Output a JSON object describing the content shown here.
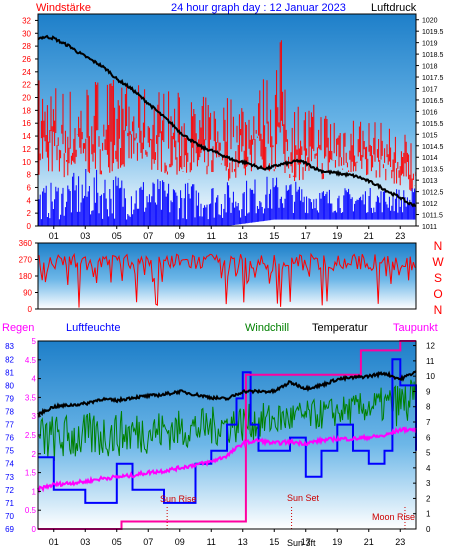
{
  "header": {
    "left_label": "Windstärke",
    "title": "24 hour graph day : 12 Januar 2023",
    "right_label": "Luftdruck"
  },
  "colors": {
    "wind_speed": "#ff0000",
    "gust": "#0000ff",
    "pressure": "#000000",
    "direction": "#ff0000",
    "rain": "#0000ff",
    "humidity": "#0000ff",
    "windchill": "#008000",
    "temperature": "#000000",
    "dewpoint": "#ff00ff",
    "rain_line": "#ff00a0"
  },
  "chart_data": [
    {
      "type": "line",
      "name": "wind-pressure",
      "x_ticks": [
        "01",
        "03",
        "05",
        "07",
        "09",
        "11",
        "13",
        "15",
        "17",
        "19",
        "21",
        "23"
      ],
      "y_left_ticks": [
        "0",
        "2",
        "4",
        "6",
        "8",
        "10",
        "12",
        "14",
        "16",
        "18",
        "20",
        "22",
        "24",
        "26",
        "28",
        "30",
        "32"
      ],
      "y_left_range": [
        0,
        33
      ],
      "y_right_ticks": [
        "1011",
        "1011.5",
        "1012",
        "1012.5",
        "1013",
        "1013.5",
        "1014",
        "1014.5",
        "1015",
        "1015.5",
        "1016",
        "1016.5",
        "1017",
        "1017.5",
        "1018",
        "1018.5",
        "1019",
        "1019.5",
        "1020"
      ],
      "y_right_range": [
        1011,
        1020.25
      ],
      "pressure": {
        "x": [
          0,
          0.5,
          1,
          1.5,
          2,
          2.5,
          3,
          3.5,
          4,
          4.5,
          5,
          5.5,
          6,
          6.5,
          7,
          7.5,
          8,
          8.5,
          9,
          9.5,
          10,
          10.5,
          11,
          11.5,
          12,
          12.5,
          13,
          13.5,
          14,
          14.5,
          15,
          15.5,
          16,
          16.5,
          17,
          17.5,
          18,
          18.5,
          19,
          19.5,
          20,
          20.5,
          21,
          21.5,
          22,
          22.5,
          23,
          23.5,
          24
        ],
        "values": [
          1019.2,
          1019.25,
          1019.2,
          1019.0,
          1018.85,
          1018.6,
          1018.4,
          1018.2,
          1018.0,
          1017.75,
          1017.4,
          1017.2,
          1016.95,
          1016.65,
          1016.35,
          1016.05,
          1015.75,
          1015.45,
          1015.1,
          1014.85,
          1014.6,
          1014.4,
          1014.3,
          1014.15,
          1014.0,
          1013.85,
          1013.8,
          1013.7,
          1013.55,
          1013.5,
          1013.6,
          1013.7,
          1013.75,
          1013.85,
          1013.75,
          1013.55,
          1013.4,
          1013.35,
          1013.3,
          1013.25,
          1013.2,
          1013.1,
          1012.95,
          1012.8,
          1012.6,
          1012.4,
          1012.25,
          1012.0,
          1011.9
        ]
      },
      "wind_speed_band": {
        "x": [
          0,
          2,
          4,
          6,
          8,
          10,
          12,
          14,
          15.5,
          16,
          18,
          20,
          22,
          24
        ],
        "low": [
          8,
          7,
          8,
          9,
          8,
          7,
          7,
          8,
          8,
          7,
          7,
          8,
          7,
          5
        ],
        "high": [
          24,
          22,
          24,
          22,
          22,
          20,
          21,
          22,
          30,
          20,
          19,
          18,
          16,
          14
        ]
      },
      "gust_band": {
        "x": [
          0,
          3,
          6,
          9,
          12,
          15,
          18,
          21,
          24
        ],
        "low": [
          1,
          1,
          1,
          1,
          1,
          2,
          2,
          2,
          2
        ],
        "high": [
          6,
          9,
          8,
          7,
          7,
          8,
          6,
          6,
          6
        ]
      }
    },
    {
      "type": "line",
      "name": "wind-direction",
      "x_ticks": [],
      "y_left_ticks": [
        "0",
        "90",
        "180",
        "270",
        "360"
      ],
      "y_left_range": [
        0,
        360
      ],
      "compass_labels": [
        "N",
        "W",
        "S",
        "O",
        "N"
      ],
      "direction_band": {
        "x": [
          0,
          24
        ],
        "low": [
          210,
          210
        ],
        "high": [
          300,
          300
        ]
      }
    },
    {
      "type": "line",
      "name": "temperature-humidity-rain",
      "legend": [
        "Regen",
        "Luftfeuchte",
        "Windchill",
        "Temperatur",
        "Taupunkt"
      ],
      "x_ticks": [
        "01",
        "03",
        "05",
        "07",
        "09",
        "11",
        "13",
        "15",
        "17",
        "19",
        "21",
        "23"
      ],
      "rain_axis_ticks": [
        "0",
        "0.5",
        "1",
        "1.5",
        "2",
        "2.5",
        "3",
        "3.5",
        "4",
        "4.5",
        "5"
      ],
      "rain_range": [
        0,
        5
      ],
      "humidity_axis_ticks": [
        "69",
        "70",
        "71",
        "72",
        "73",
        "74",
        "75",
        "76",
        "77",
        "78",
        "79",
        "80",
        "81",
        "82",
        "83"
      ],
      "humidity_range": [
        69,
        83.4
      ],
      "temperature_axis_ticks": [
        "0",
        "1",
        "2",
        "3",
        "4",
        "5",
        "6",
        "7",
        "8",
        "9",
        "10",
        "11",
        "12"
      ],
      "temperature_range": [
        0,
        12.3
      ],
      "temperature": {
        "x": [
          0,
          1,
          2,
          3,
          4,
          5,
          6,
          7,
          8,
          9,
          10,
          11,
          12,
          13,
          14,
          15,
          16,
          17,
          18,
          19,
          20,
          21,
          22,
          23,
          24
        ],
        "values": [
          7.5,
          8,
          8.1,
          8.2,
          8.5,
          8.4,
          8.6,
          8.7,
          8.8,
          9.0,
          8.8,
          8.6,
          8.5,
          9.0,
          9.0,
          9.0,
          9.6,
          9.2,
          9.4,
          9.8,
          9.9,
          10.0,
          10.2,
          9.8,
          10.3
        ]
      },
      "windchill_band": {
        "x": [
          0,
          3,
          6,
          9,
          12,
          15,
          18,
          21,
          24
        ],
        "low": [
          4.2,
          4.5,
          4.8,
          5.2,
          5.5,
          6.0,
          6.5,
          7.0,
          6.5
        ],
        "high": [
          7.5,
          7.6,
          7.8,
          7.8,
          8.1,
          8.3,
          8.5,
          9.0,
          10.0
        ]
      },
      "dewpoint": {
        "x": [
          0,
          1,
          2,
          3,
          4,
          5,
          6,
          7,
          8,
          9,
          10,
          11,
          12,
          13,
          14,
          15,
          16,
          17,
          18,
          19,
          20,
          21,
          22,
          23,
          24
        ],
        "values": [
          2.6,
          2.9,
          3.0,
          3.1,
          3.3,
          3.4,
          3.5,
          3.7,
          3.8,
          4.0,
          4.2,
          4.4,
          4.8,
          5.6,
          5.8,
          5.6,
          5.7,
          5.6,
          5.8,
          5.9,
          5.9,
          6.0,
          6.1,
          6.5,
          6.5
        ]
      },
      "rain_total": {
        "x": [
          0,
          5.3,
          5.3,
          13.2,
          13.2,
          20.5,
          20.5,
          23,
          23,
          24
        ],
        "values": [
          0,
          0,
          0.2,
          0.2,
          4.1,
          4.1,
          4.75,
          4.75,
          5.0,
          5.0
        ]
      },
      "humidity": {
        "x": [
          0,
          1,
          2,
          3,
          4,
          5,
          6,
          7,
          8,
          9,
          10,
          11,
          12,
          12.6,
          13,
          13.5,
          14,
          15,
          16,
          17,
          18,
          19,
          20,
          21,
          22,
          22.5,
          23,
          24
        ],
        "values": [
          74.5,
          72,
          72,
          71,
          71,
          74,
          72,
          72,
          71,
          71,
          74,
          75,
          77,
          79,
          81,
          77,
          75,
          75,
          76,
          73,
          75,
          77,
          75,
          74,
          75,
          82,
          80,
          75
        ]
      },
      "annotations": [
        {
          "label": "Sun Rise",
          "x": 8.2
        },
        {
          "label": "Sun Set",
          "x": 16.1
        },
        {
          "label": "Moon Rise",
          "x": 23.3
        }
      ],
      "sun_marker": "Sun 3ft"
    }
  ]
}
